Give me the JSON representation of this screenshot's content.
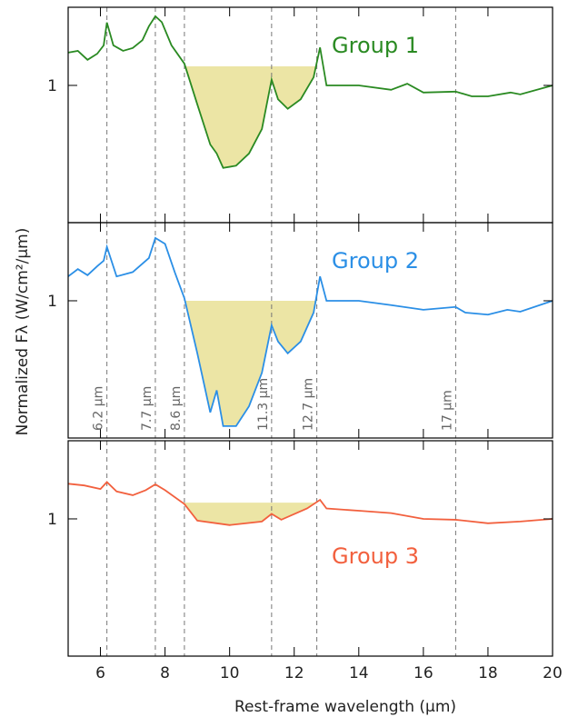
{
  "shared": {
    "xlim": [
      5,
      20
    ],
    "xticks": [
      6,
      8,
      10,
      12,
      14,
      16,
      18,
      20
    ],
    "xlabel": "Rest-frame wavelength (μm)",
    "ylabel": "Normalized Fλ (W/cm²/μm)",
    "features": [
      {
        "x": 6.2,
        "label": "6.2 μm"
      },
      {
        "x": 7.7,
        "label": "7.7 μm"
      },
      {
        "x": 8.6,
        "label": "8.6 μm"
      },
      {
        "x": 11.3,
        "label": "11.3 μm"
      },
      {
        "x": 12.7,
        "label": "12.7 μm"
      },
      {
        "x": 17,
        "label": "17 μm"
      }
    ]
  },
  "chart_data": [
    {
      "type": "line",
      "name": "Group 1",
      "color": "#2a8a22",
      "log_y": true,
      "ylim": [
        0.2,
        2.5
      ],
      "yticks": [
        1
      ],
      "x": [
        5,
        5.3,
        5.6,
        5.9,
        6.1,
        6.2,
        6.4,
        6.7,
        7.0,
        7.3,
        7.5,
        7.7,
        7.9,
        8.2,
        8.6,
        9.0,
        9.4,
        9.6,
        9.8,
        10.2,
        10.6,
        11.0,
        11.3,
        11.5,
        11.8,
        12.2,
        12.6,
        12.8,
        13.0,
        14,
        15,
        15.5,
        16,
        17,
        17.5,
        18,
        18.7,
        19,
        20
      ],
      "values": [
        1.47,
        1.5,
        1.35,
        1.45,
        1.6,
        2.09,
        1.6,
        1.5,
        1.55,
        1.7,
        2.0,
        2.25,
        2.1,
        1.6,
        1.29,
        0.8,
        0.5,
        0.45,
        0.38,
        0.39,
        0.45,
        0.6,
        1.07,
        0.85,
        0.76,
        0.85,
        1.1,
        1.56,
        1.0,
        1.0,
        0.95,
        1.02,
        0.92,
        0.93,
        0.88,
        0.88,
        0.92,
        0.9,
        1.0
      ],
      "shade": {
        "xlim": [
          8.6,
          12.7
        ],
        "level": 1.25
      }
    },
    {
      "type": "line",
      "name": "Group 2",
      "color": "#2b8fe6",
      "log_y": true,
      "ylim": [
        0.2,
        2.5
      ],
      "yticks": [
        1
      ],
      "x": [
        5,
        5.3,
        5.6,
        5.9,
        6.1,
        6.2,
        6.5,
        7.0,
        7.5,
        7.7,
        8.0,
        8.3,
        8.6,
        9.0,
        9.4,
        9.6,
        9.8,
        10.2,
        10.6,
        11.0,
        11.3,
        11.5,
        11.8,
        12.2,
        12.6,
        12.8,
        13.0,
        14,
        15,
        16,
        17,
        17.3,
        18,
        18.6,
        19,
        20
      ],
      "values": [
        1.33,
        1.45,
        1.35,
        1.5,
        1.6,
        1.88,
        1.33,
        1.4,
        1.65,
        2.09,
        1.95,
        1.4,
        1.03,
        0.54,
        0.27,
        0.35,
        0.23,
        0.23,
        0.29,
        0.43,
        0.75,
        0.62,
        0.54,
        0.62,
        0.87,
        1.33,
        1.0,
        1.0,
        0.95,
        0.9,
        0.93,
        0.87,
        0.85,
        0.9,
        0.88,
        1.0
      ],
      "shade": {
        "xlim": [
          8.6,
          12.7
        ],
        "level": 1.0
      }
    },
    {
      "type": "line",
      "name": "Group 3",
      "color": "#f2603e",
      "log_y": true,
      "ylim": [
        0.2,
        2.5
      ],
      "yticks": [
        1
      ],
      "x": [
        5,
        5.5,
        6.0,
        6.2,
        6.5,
        7.0,
        7.4,
        7.7,
        8.0,
        8.6,
        9.0,
        10,
        11,
        11.3,
        11.6,
        12.4,
        12.8,
        13.0,
        14,
        15,
        16,
        17,
        18,
        19,
        20
      ],
      "values": [
        1.51,
        1.48,
        1.42,
        1.54,
        1.38,
        1.32,
        1.4,
        1.5,
        1.4,
        1.19,
        0.98,
        0.93,
        0.97,
        1.06,
        0.99,
        1.13,
        1.25,
        1.13,
        1.1,
        1.07,
        1.0,
        0.99,
        0.95,
        0.97,
        1.0
      ],
      "shade": {
        "xlim": [
          8.6,
          12.7
        ],
        "level": 1.21
      }
    }
  ]
}
